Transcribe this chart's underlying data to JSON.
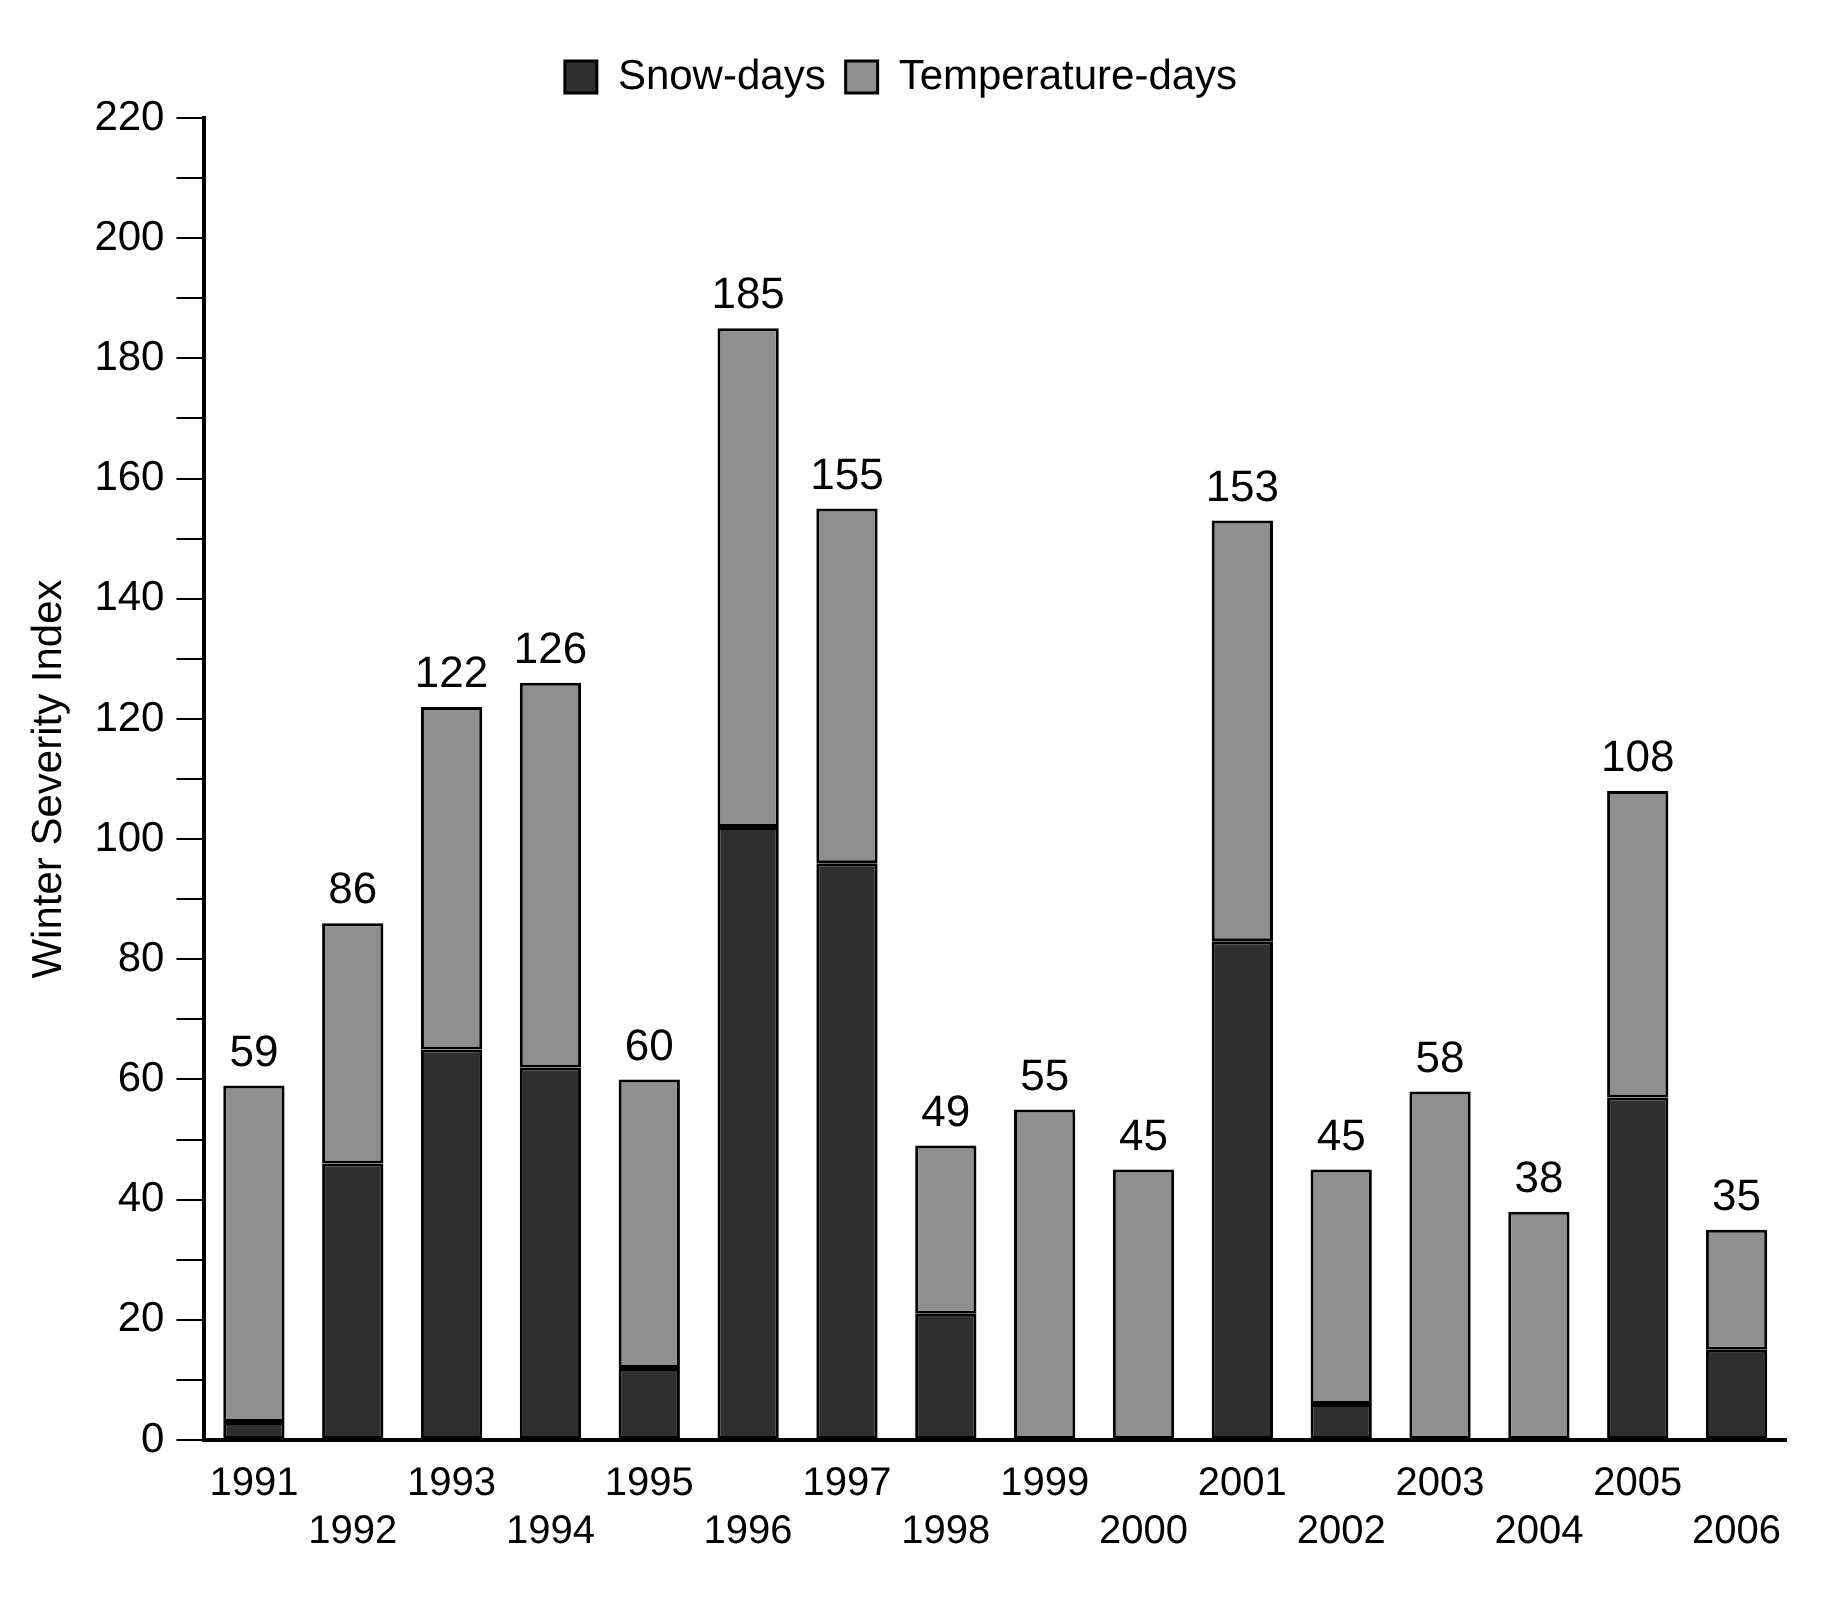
{
  "chart_data": {
    "type": "bar",
    "stacked": true,
    "ylabel": "Winter Severity Index",
    "categories": [
      "1991",
      "1992",
      "1993",
      "1994",
      "1995",
      "1996",
      "1997",
      "1998",
      "1999",
      "2000",
      "2001",
      "2002",
      "2003",
      "2004",
      "2005",
      "2006"
    ],
    "series": [
      {
        "name": "Snow-days",
        "color": "#2f2f2f",
        "values": [
          3,
          46,
          65,
          62,
          12,
          102,
          96,
          21,
          0,
          0,
          83,
          6,
          0,
          0,
          57,
          15
        ]
      },
      {
        "name": "Temperature-days",
        "color": "#8f8f8f",
        "values": [
          56,
          40,
          57,
          64,
          48,
          83,
          59,
          28,
          55,
          45,
          70,
          39,
          58,
          38,
          51,
          20
        ]
      }
    ],
    "totals": [
      "59",
      "86",
      "122",
      "126",
      "60",
      "185",
      "155",
      "49",
      "55",
      "45",
      "153",
      "45",
      "58",
      "38",
      "108",
      "35"
    ],
    "ylim": [
      0,
      220
    ],
    "yticks": [
      0,
      {
        "value": 10,
        "label": null
      },
      20,
      {
        "value": 30,
        "label": null
      },
      40,
      {
        "value": 50,
        "label": null
      },
      60,
      {
        "value": 70,
        "label": null
      },
      80,
      {
        "value": 90,
        "label": null
      },
      100,
      {
        "value": 110,
        "label": null
      },
      120,
      {
        "value": 130,
        "label": null
      },
      140,
      {
        "value": 150,
        "label": null
      },
      160,
      {
        "value": 170,
        "label": null
      },
      180,
      {
        "value": 190,
        "label": null
      },
      200,
      {
        "value": 210,
        "label": null
      },
      220
    ],
    "grid": false,
    "legend": "top"
  }
}
